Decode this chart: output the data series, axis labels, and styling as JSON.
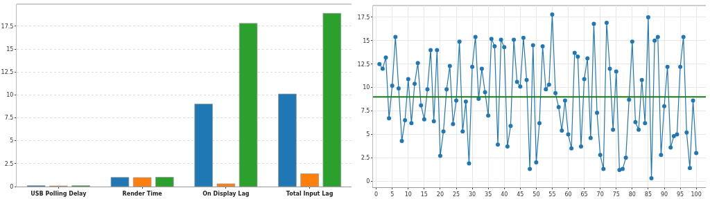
{
  "chart_data": [
    {
      "type": "bar",
      "categories": [
        "USB Polling Delay",
        "Render Time",
        "On Display Lag",
        "Total Input Lag"
      ],
      "series": [
        {
          "color": "#1f77b4",
          "values": [
            0.1,
            1.0,
            9.0,
            10.1
          ]
        },
        {
          "color": "#ff7f0e",
          "values": [
            0.07,
            0.98,
            0.3,
            1.4
          ]
        },
        {
          "color": "#2ca02c",
          "values": [
            0.1,
            1.02,
            17.8,
            18.9
          ]
        }
      ],
      "ylim": [
        0,
        19.9
      ],
      "yticks": [
        0,
        2.5,
        5,
        7.5,
        10,
        12.5,
        15,
        17.5
      ],
      "grid": "y"
    },
    {
      "type": "line",
      "marker": "circle",
      "x": [
        1,
        2,
        3,
        4,
        5,
        6,
        7,
        8,
        9,
        10,
        11,
        12,
        13,
        14,
        15,
        16,
        17,
        18,
        19,
        20,
        21,
        22,
        23,
        24,
        25,
        26,
        27,
        28,
        29,
        30,
        31,
        32,
        33,
        34,
        35,
        36,
        37,
        38,
        39,
        40,
        41,
        42,
        43,
        44,
        45,
        46,
        47,
        48,
        49,
        50,
        51,
        52,
        53,
        54,
        55,
        56,
        57,
        58,
        59,
        60,
        61,
        62,
        63,
        64,
        65,
        66,
        67,
        68,
        69,
        70,
        71,
        72,
        73,
        74,
        75,
        76,
        77,
        78,
        79,
        80,
        81,
        82,
        83,
        84,
        85,
        86,
        87,
        88,
        89,
        90,
        91,
        92,
        93,
        94,
        95,
        96,
        97,
        98,
        99,
        100
      ],
      "series": [
        {
          "color": "#1f77b4",
          "values": [
            12.5,
            12.0,
            13.2,
            6.7,
            10.2,
            15.4,
            9.9,
            4.3,
            6.5,
            10.9,
            6.2,
            10.4,
            12.6,
            8.1,
            6.6,
            9.8,
            14.0,
            6.4,
            14.0,
            2.7,
            5.3,
            9.8,
            12.3,
            6.1,
            8.6,
            14.9,
            5.3,
            8.5,
            1.9,
            12.2,
            15.4,
            8.8,
            12.0,
            9.5,
            7.0,
            15.2,
            14.4,
            3.9,
            15.1,
            14.3,
            3.7,
            5.9,
            15.1,
            10.6,
            10.1,
            15.3,
            10.8,
            1.3,
            14.5,
            2.0,
            6.2,
            14.4,
            9.8,
            10.3,
            17.8,
            9.4,
            7.9,
            5.4,
            8.6,
            5.0,
            3.5,
            13.7,
            13.3,
            3.7,
            10.9,
            13.1,
            4.6,
            16.8,
            7.3,
            2.8,
            1.3,
            16.9,
            12.0,
            5.5,
            11.7,
            1.2,
            1.3,
            2.5,
            8.7,
            14.9,
            6.3,
            5.5,
            10.8,
            6.2,
            17.5,
            0.3,
            15.0,
            15.4,
            2.8,
            8.0,
            12.2,
            3.6,
            4.8,
            5.0,
            12.2,
            15.4,
            5.2,
            1.4,
            8.6,
            3.0
          ]
        }
      ],
      "ref_lines": [
        {
          "axis": "y",
          "value": 9.0,
          "color": "#1a7a1a"
        }
      ],
      "xlim": [
        -1,
        103
      ],
      "xticks": [
        0,
        5,
        10,
        15,
        20,
        25,
        30,
        35,
        40,
        45,
        50,
        55,
        60,
        65,
        70,
        75,
        80,
        85,
        90,
        95,
        100
      ],
      "ylim": [
        -0.65,
        18.75
      ],
      "yticks": [
        0,
        2.5,
        5,
        7.5,
        10,
        12.5,
        15,
        17.5
      ],
      "grid": true
    }
  ]
}
